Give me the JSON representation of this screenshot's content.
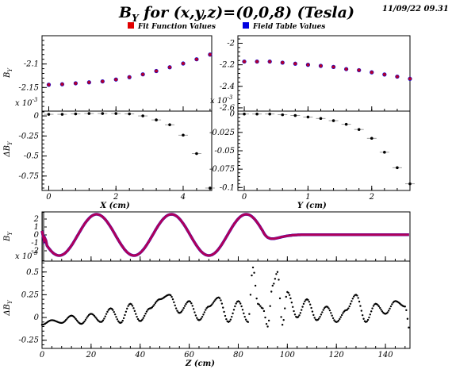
{
  "header": {
    "title_main": "B",
    "title_sub": "Y",
    "title_rest": " for (x,y,z)=(0,0,8)  (Tesla)",
    "date": "11/09/22  09.31"
  },
  "legend": [
    {
      "label": "Fit Function Values",
      "color": "#e00000"
    },
    {
      "label": "Field Table Values",
      "color": "#0000e0"
    }
  ],
  "colors": {
    "fit": "#e00000",
    "table": "#0000e0",
    "residual": "#000000",
    "overlap": "#b0005a"
  },
  "chart_data": [
    {
      "id": "bx",
      "type": "scatter",
      "xlabel": "",
      "ylabel": "B_Y",
      "xlim": [
        -0.2,
        4.85
      ],
      "ylim": [
        -2.2,
        -2.04
      ],
      "yticks": [
        -2.1,
        -2.15
      ],
      "xticks": [
        0,
        2,
        4
      ],
      "series": [
        {
          "name": "Fit Function Values",
          "x": [
            0.0,
            0.4,
            0.8,
            1.2,
            1.6,
            2.0,
            2.4,
            2.8,
            3.2,
            3.6,
            4.0,
            4.4,
            4.8
          ],
          "values": [
            -2.144,
            -2.143,
            -2.141,
            -2.139,
            -2.137,
            -2.133,
            -2.128,
            -2.122,
            -2.115,
            -2.107,
            -2.099,
            -2.09,
            -2.08
          ]
        },
        {
          "name": "Field Table Values",
          "x": [
            0.0,
            0.4,
            0.8,
            1.2,
            1.6,
            2.0,
            2.4,
            2.8,
            3.2,
            3.6,
            4.0,
            4.4,
            4.8
          ],
          "values": [
            -2.144,
            -2.143,
            -2.141,
            -2.139,
            -2.137,
            -2.133,
            -2.128,
            -2.122,
            -2.115,
            -2.107,
            -2.099,
            -2.09,
            -2.08
          ]
        }
      ]
    },
    {
      "id": "by",
      "type": "scatter",
      "xlabel": "",
      "ylabel": "",
      "xlim": [
        -0.1,
        2.6
      ],
      "ylim": [
        -2.63,
        -1.93
      ],
      "yticks": [
        -2,
        -2.2,
        -2.4,
        -2.6
      ],
      "xticks": [
        0,
        1,
        2
      ],
      "series": [
        {
          "name": "Fit Function Values",
          "x": [
            0.0,
            0.2,
            0.4,
            0.6,
            0.8,
            1.0,
            1.2,
            1.4,
            1.6,
            1.8,
            2.0,
            2.2,
            2.4,
            2.6
          ],
          "values": [
            -2.17,
            -2.17,
            -2.17,
            -2.18,
            -2.19,
            -2.2,
            -2.21,
            -2.22,
            -2.24,
            -2.25,
            -2.27,
            -2.29,
            -2.31,
            -2.33
          ]
        },
        {
          "name": "Field Table Values",
          "x": [
            0.0,
            0.2,
            0.4,
            0.6,
            0.8,
            1.0,
            1.2,
            1.4,
            1.6,
            1.8,
            2.0,
            2.2,
            2.4,
            2.6
          ],
          "values": [
            -2.17,
            -2.17,
            -2.17,
            -2.18,
            -2.19,
            -2.2,
            -2.21,
            -2.22,
            -2.24,
            -2.25,
            -2.27,
            -2.29,
            -2.31,
            -2.33
          ]
        }
      ]
    },
    {
      "id": "dbx",
      "type": "scatter",
      "xlabel": "X (cm)",
      "ylabel": "ΔB_Y",
      "multiplier": "x 10^-3",
      "xlim": [
        -0.2,
        4.85
      ],
      "ylim": [
        -0.93,
        0.06
      ],
      "yticks": [
        0,
        -0.25,
        -0.5,
        -0.75
      ],
      "xticks": [
        0,
        2,
        4
      ],
      "series": [
        {
          "name": "residual",
          "x": [
            0.0,
            0.4,
            0.8,
            1.2,
            1.6,
            2.0,
            2.4,
            2.8,
            3.2,
            3.6,
            4.0,
            4.4,
            4.8
          ],
          "values": [
            0.02,
            0.02,
            0.025,
            0.03,
            0.03,
            0.03,
            0.025,
            0.0,
            -0.05,
            -0.11,
            -0.24,
            -0.47,
            -0.9
          ]
        }
      ]
    },
    {
      "id": "dby",
      "type": "scatter",
      "xlabel": "Y (cm)",
      "ylabel": "",
      "multiplier": "x 10^-3",
      "xlim": [
        -0.1,
        2.6
      ],
      "ylim": [
        -0.104,
        0.004
      ],
      "yticks": [
        0,
        -0.025,
        -0.05,
        -0.075,
        -0.1
      ],
      "xticks": [
        0,
        1,
        2
      ],
      "series": [
        {
          "name": "residual",
          "x": [
            0.0,
            0.2,
            0.4,
            0.6,
            0.8,
            1.0,
            1.2,
            1.4,
            1.6,
            1.8,
            2.0,
            2.2,
            2.4,
            2.6
          ],
          "values": [
            0.0,
            0.0,
            0.0,
            -0.001,
            -0.002,
            -0.004,
            -0.006,
            -0.009,
            -0.014,
            -0.021,
            -0.033,
            -0.052,
            -0.073,
            -0.095
          ]
        }
      ]
    },
    {
      "id": "bz",
      "type": "line",
      "xlabel": "",
      "ylabel": "B_Y",
      "xlim": [
        0,
        150
      ],
      "ylim": [
        -3.3,
        2.9
      ],
      "yticks": [
        2,
        1,
        0,
        -1,
        -2
      ],
      "xticks": [
        0,
        20,
        40,
        60,
        80,
        100,
        120,
        140
      ],
      "series": [
        {
          "name": "Fit Function Values",
          "function": "field_profile"
        },
        {
          "name": "Field Table Values",
          "function": "field_profile"
        }
      ]
    },
    {
      "id": "dbz",
      "type": "scatter",
      "xlabel": "Z (cm)",
      "ylabel": "ΔB_Y",
      "multiplier": "x 10^-3",
      "xlim": [
        0,
        150
      ],
      "ylim": [
        -0.34,
        0.62
      ],
      "yticks": [
        0.5,
        0.25,
        0,
        -0.25
      ],
      "xticks": [
        0,
        20,
        40,
        60,
        80,
        100,
        120,
        140
      ],
      "series": [
        {
          "name": "residual",
          "x": [
            0,
            4,
            8,
            12,
            16,
            20,
            24,
            28,
            32,
            36,
            40,
            44,
            48,
            52,
            56,
            60,
            64,
            68,
            72,
            76,
            80,
            84,
            86,
            88,
            90,
            92,
            94,
            96,
            98,
            100,
            104,
            108,
            112,
            116,
            120,
            124,
            128,
            132,
            136,
            140,
            144,
            148,
            150
          ],
          "values": [
            -0.08,
            -0.03,
            -0.06,
            0.02,
            -0.07,
            0.04,
            -0.05,
            0.1,
            -0.06,
            0.15,
            -0.04,
            0.1,
            0.2,
            0.25,
            0.05,
            0.18,
            -0.03,
            0.12,
            0.22,
            -0.05,
            0.18,
            -0.05,
            0.55,
            0.15,
            0.1,
            -0.1,
            0.35,
            0.5,
            -0.08,
            0.28,
            0.0,
            0.2,
            -0.03,
            0.12,
            -0.05,
            0.08,
            0.25,
            -0.05,
            0.15,
            0.04,
            0.18,
            0.12,
            -0.15
          ]
        }
      ]
    }
  ]
}
